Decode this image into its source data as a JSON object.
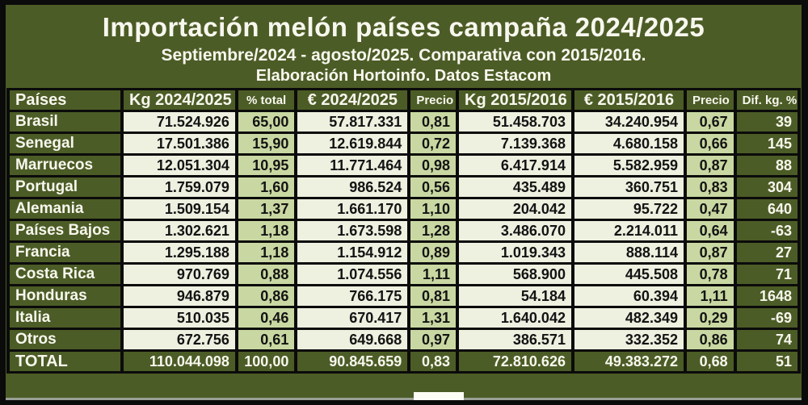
{
  "title": "Importación melón países campaña 2024/2025",
  "subtitle_line1": "Septiembre/2024 - agosto/2025. Comparativa con 2015/2016.",
  "subtitle_line2": "Elaboración Hortoinfo. Datos Estacom",
  "colors": {
    "panel_olive": "#4c5c26",
    "cell_cream": "#eef0e0",
    "cell_light_green": "#c9d8a2",
    "grid_black": "#0b0b0b",
    "text_white": "#f7f7ee",
    "text_dark": "#131313"
  },
  "chart_data": {
    "type": "table",
    "title": "Importación melón países campaña 2024/2025",
    "subtitle": "Septiembre/2024 - agosto/2025. Comparativa con 2015/2016. Elaboración Hortoinfo. Datos Estacom",
    "columns": [
      "Países",
      "Kg 2024/2025",
      "% total",
      "€ 2024/2025",
      "Precio",
      "Kg 2015/2016",
      "€ 2015/2016",
      "Precio",
      "Dif. kg. %"
    ],
    "rows": [
      [
        "Brasil",
        "71.524.926",
        "65,00",
        "57.817.331",
        "0,81",
        "51.458.703",
        "34.240.954",
        "0,67",
        "39"
      ],
      [
        "Senegal",
        "17.501.386",
        "15,90",
        "12.619.844",
        "0,72",
        "7.139.368",
        "4.680.158",
        "0,66",
        "145"
      ],
      [
        "Marruecos",
        "12.051.304",
        "10,95",
        "11.771.464",
        "0,98",
        "6.417.914",
        "5.582.959",
        "0,87",
        "88"
      ],
      [
        "Portugal",
        "1.759.079",
        "1,60",
        "986.524",
        "0,56",
        "435.489",
        "360.751",
        "0,83",
        "304"
      ],
      [
        "Alemania",
        "1.509.154",
        "1,37",
        "1.661.170",
        "1,10",
        "204.042",
        "95.722",
        "0,47",
        "640"
      ],
      [
        "Países Bajos",
        "1.302.621",
        "1,18",
        "1.673.598",
        "1,28",
        "3.486.070",
        "2.214.011",
        "0,64",
        "-63"
      ],
      [
        "Francia",
        "1.295.188",
        "1,18",
        "1.154.912",
        "0,89",
        "1.019.343",
        "888.114",
        "0,87",
        "27"
      ],
      [
        "Costa Rica",
        "970.769",
        "0,88",
        "1.074.556",
        "1,11",
        "568.900",
        "445.508",
        "0,78",
        "71"
      ],
      [
        "Honduras",
        "946.879",
        "0,86",
        "766.175",
        "0,81",
        "54.184",
        "60.394",
        "1,11",
        "1648"
      ],
      [
        "Italia",
        "510.035",
        "0,46",
        "670.417",
        "1,31",
        "1.640.042",
        "482.349",
        "0,29",
        "-69"
      ],
      [
        "Otros",
        "672.756",
        "0,61",
        "649.668",
        "0,97",
        "386.571",
        "332.352",
        "0,86",
        "74"
      ]
    ],
    "total_row": [
      "TOTAL",
      "110.044.098",
      "100,00",
      "90.845.659",
      "0,83",
      "72.810.626",
      "49.383.272",
      "0,68",
      "51"
    ]
  }
}
